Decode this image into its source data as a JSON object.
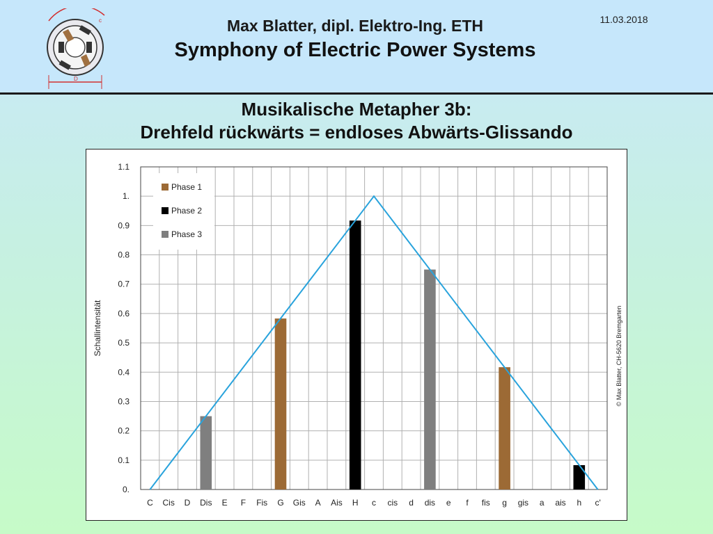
{
  "header": {
    "author": "Max Blatter, dipl. Elektro-Ing. ETH",
    "title": "Symphony of Electric Power Systems",
    "date": "11.03.2018",
    "logo_label_top": "c",
    "logo_label_bottom": "D"
  },
  "slide": {
    "title_line1": "Musikalische Metapher 3b:",
    "title_line2": "Drehfeld rückwärts = endloses Abwärts-Glissando"
  },
  "colors": {
    "phase1": "#9c6a35",
    "phase2": "#000000",
    "phase3": "#7f7f7f",
    "envelope": "#29a3dc"
  },
  "chart_data": {
    "type": "bar",
    "categories": [
      "C",
      "Cis",
      "D",
      "Dis",
      "E",
      "F",
      "Fis",
      "G",
      "Gis",
      "A",
      "Ais",
      "H",
      "c",
      "cis",
      "d",
      "dis",
      "e",
      "f",
      "fis",
      "g",
      "gis",
      "a",
      "ais",
      "h",
      "c'"
    ],
    "ylabel": "Schallintensität",
    "ylim": [
      0,
      1.1
    ],
    "yticks": [
      "0.",
      "0.1",
      "0.2",
      "0.3",
      "0.4",
      "0.5",
      "0.6",
      "0.7",
      "0.8",
      "0.9",
      "1.",
      "1.1"
    ],
    "grid": true,
    "legend_position": "top-left",
    "series": [
      {
        "name": "Phase 1",
        "color_key": "phase1",
        "points": [
          {
            "x": "G",
            "y": 0.583
          },
          {
            "x": "g",
            "y": 0.417
          }
        ]
      },
      {
        "name": "Phase 2",
        "color_key": "phase2",
        "points": [
          {
            "x": "H",
            "y": 0.917
          },
          {
            "x": "h",
            "y": 0.083
          }
        ]
      },
      {
        "name": "Phase 3",
        "color_key": "phase3",
        "points": [
          {
            "x": "Dis",
            "y": 0.25
          },
          {
            "x": "dis",
            "y": 0.75
          }
        ]
      }
    ],
    "envelope": {
      "type": "line",
      "x": [
        "C",
        "c",
        "c'"
      ],
      "y": [
        0,
        1.0,
        0
      ]
    },
    "annotation": "© Max Blatter, CH-5620 Bremgarten"
  }
}
